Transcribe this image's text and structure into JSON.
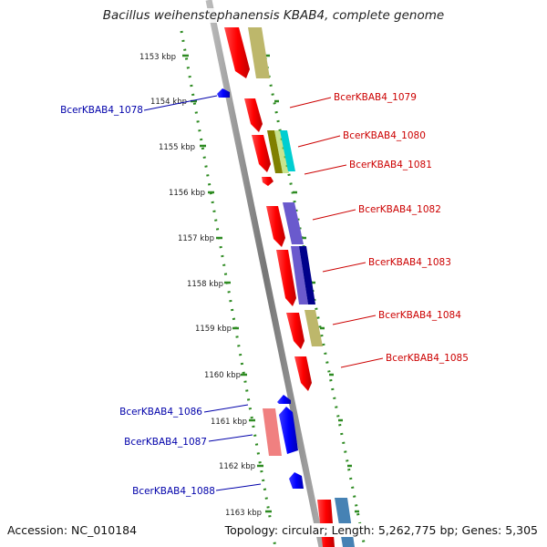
{
  "title": "Bacillus weihenstephanensis KBAB4, complete genome",
  "footer": {
    "accession": "Accession: NC_010184",
    "summary": "Topology: circular; Length: 5,262,775 bp; Genes: 5,305"
  },
  "ruler_ticks": [
    "1153 kbp",
    "1154 kbp",
    "1155 kbp",
    "1156 kbp",
    "1157 kbp",
    "1158 kbp",
    "1159 kbp",
    "1160 kbp",
    "1161 kbp",
    "1162 kbp",
    "1163 kbp"
  ],
  "colors": {
    "backbone": "#888888",
    "ruler": "#2e8b22",
    "label_red": "#cc0000",
    "label_blue": "#0000aa"
  },
  "genes_forward": [
    {
      "label": "BcerKBAB4_1079",
      "color": "#ff0000"
    },
    {
      "label": "BcerKBAB4_1080",
      "color": "#ff0000"
    },
    {
      "label": "BcerKBAB4_1081",
      "color": "#ff0000"
    },
    {
      "label": "BcerKBAB4_1082",
      "color": "#ff0000"
    },
    {
      "label": "BcerKBAB4_1083",
      "color": "#ff0000"
    },
    {
      "label": "BcerKBAB4_1084",
      "color": "#ff0000"
    },
    {
      "label": "BcerKBAB4_1085",
      "color": "#ff0000"
    }
  ],
  "genes_reverse": [
    {
      "label": "BcerKBAB4_1078",
      "color": "#0000ff"
    },
    {
      "label": "BcerKBAB4_1086",
      "color": "#0000ff"
    },
    {
      "label": "BcerKBAB4_1087",
      "color": "#0000ff"
    },
    {
      "label": "BcerKBAB4_1088",
      "color": "#0000ff"
    }
  ],
  "cog_colors": [
    "#bdb76b",
    "#808000",
    "#00ced1",
    "#6a5acd",
    "#00008b",
    "#bdb76b",
    "#f08080",
    "#4682b4"
  ]
}
